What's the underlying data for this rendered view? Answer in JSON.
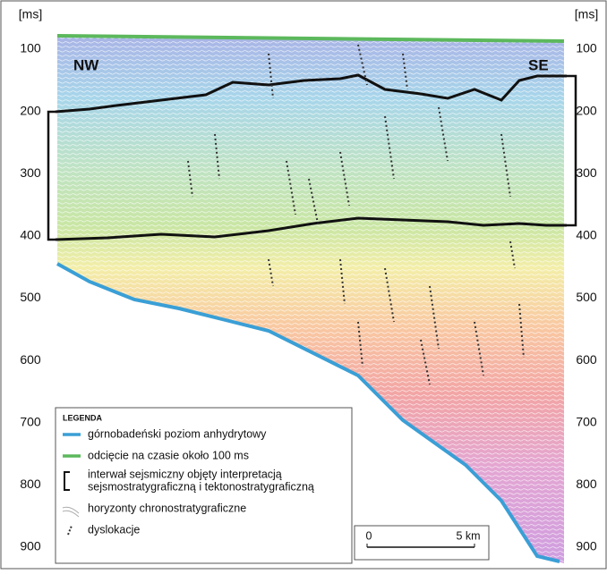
{
  "axis": {
    "unit": "[ms]",
    "ticks": [
      100,
      200,
      300,
      400,
      500,
      600,
      700,
      800,
      900
    ]
  },
  "labels": {
    "left": "NW",
    "right": "SE"
  },
  "legend": {
    "title": "LEGENDA",
    "items": [
      "górnobadeński poziom anhydrytowy",
      "odcięcie na czasie około 100 ms",
      "interwał sejsmiczny objęty interpretacją",
      "sejsmostratygraficzną i tektonostratygraficzną",
      "horyzonty chronostratygraficzne",
      "dyslokacje"
    ]
  },
  "scale_bar": {
    "start": "0",
    "end": "5 km"
  }
}
